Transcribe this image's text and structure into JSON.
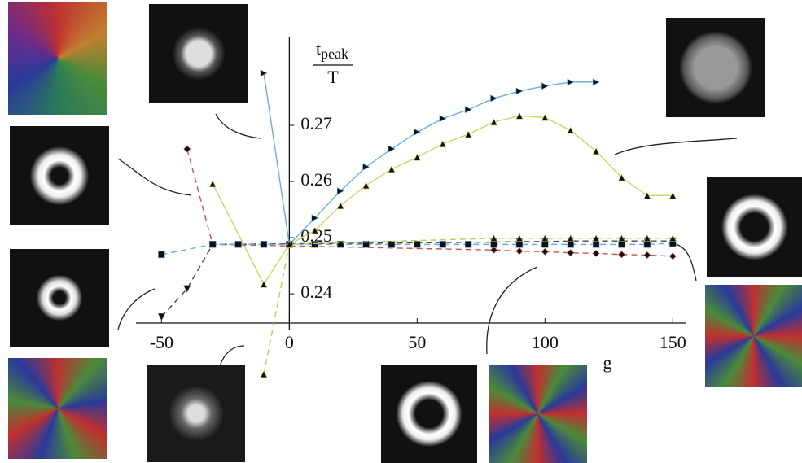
{
  "chart_data": {
    "type": "line",
    "ylabel_num": "t",
    "ylabel_sub": "peak",
    "ylabel_den": "T",
    "xlabel": "g",
    "xlim": [
      -60,
      155
    ],
    "ylim": [
      0.2348,
      0.285
    ],
    "xticks": [
      -50,
      0,
      50,
      100,
      150
    ],
    "yticks": [
      0.24,
      0.25,
      0.26,
      0.27
    ],
    "series": [
      {
        "color": "#6aaee0",
        "marker": "triangle-right",
        "dashed": false,
        "x": [
          -10,
          0,
          10,
          20,
          30,
          40,
          50,
          60,
          70,
          80,
          90,
          100,
          110,
          120
        ],
        "values": [
          0.2793,
          0.2488,
          0.2535,
          0.2583,
          0.2626,
          0.2658,
          0.2688,
          0.2712,
          0.2728,
          0.2748,
          0.2761,
          0.277,
          0.2777,
          0.2777
        ]
      },
      {
        "color": "#d2d26a",
        "marker": "triangle-up",
        "dashed": false,
        "x": [
          -30,
          -10,
          0,
          10,
          20,
          30,
          40,
          50,
          60,
          70,
          80,
          90,
          100,
          110,
          120,
          130,
          140,
          150
        ],
        "values": [
          0.2596,
          0.2417,
          0.2488,
          0.2513,
          0.2557,
          0.2593,
          0.2622,
          0.2643,
          0.2667,
          0.2684,
          0.2706,
          0.2717,
          0.2714,
          0.2691,
          0.2654,
          0.2607,
          0.2575,
          0.2575
        ]
      },
      {
        "color": "#d05050",
        "marker": "diamond",
        "dashed": true,
        "x": [
          -40,
          -30,
          80,
          90,
          100,
          110,
          120,
          130,
          140,
          150
        ],
        "values": [
          0.2658,
          0.2488,
          0.2478,
          0.2476,
          0.2475,
          0.2473,
          0.2472,
          0.247,
          0.2469,
          0.2467
        ]
      },
      {
        "color": "#444444",
        "marker": "triangle-down",
        "dashed": true,
        "x": [
          -50,
          -40,
          -30,
          80,
          90,
          100,
          110,
          120,
          130,
          140,
          150
        ],
        "values": [
          0.2359,
          0.2409,
          0.2488,
          0.2492,
          0.2493,
          0.2493,
          0.2494,
          0.2494,
          0.2494,
          0.2494,
          0.2494
        ]
      },
      {
        "color": "#6aaee0",
        "marker": "square",
        "dashed": true,
        "x": [
          -50,
          -30,
          -20,
          -10,
          0,
          10,
          20,
          30,
          40,
          50,
          60,
          70,
          80,
          90,
          100,
          110,
          120,
          130,
          140,
          150
        ],
        "values": [
          0.247,
          0.2488,
          0.2488,
          0.2488,
          0.2488,
          0.2488,
          0.2488,
          0.2488,
          0.2488,
          0.2488,
          0.2488,
          0.2488,
          0.2488,
          0.2488,
          0.2488,
          0.2488,
          0.2488,
          0.2488,
          0.2488,
          0.249
        ]
      },
      {
        "color": "#c8c850",
        "marker": "triangle-up",
        "dashed": true,
        "x": [
          -10,
          0,
          80,
          90,
          100,
          110,
          120,
          130,
          140,
          150
        ],
        "values": [
          0.2257,
          0.2488,
          0.2499,
          0.2499,
          0.2499,
          0.2499,
          0.2499,
          0.2499,
          0.2499,
          0.2499
        ]
      }
    ]
  }
}
